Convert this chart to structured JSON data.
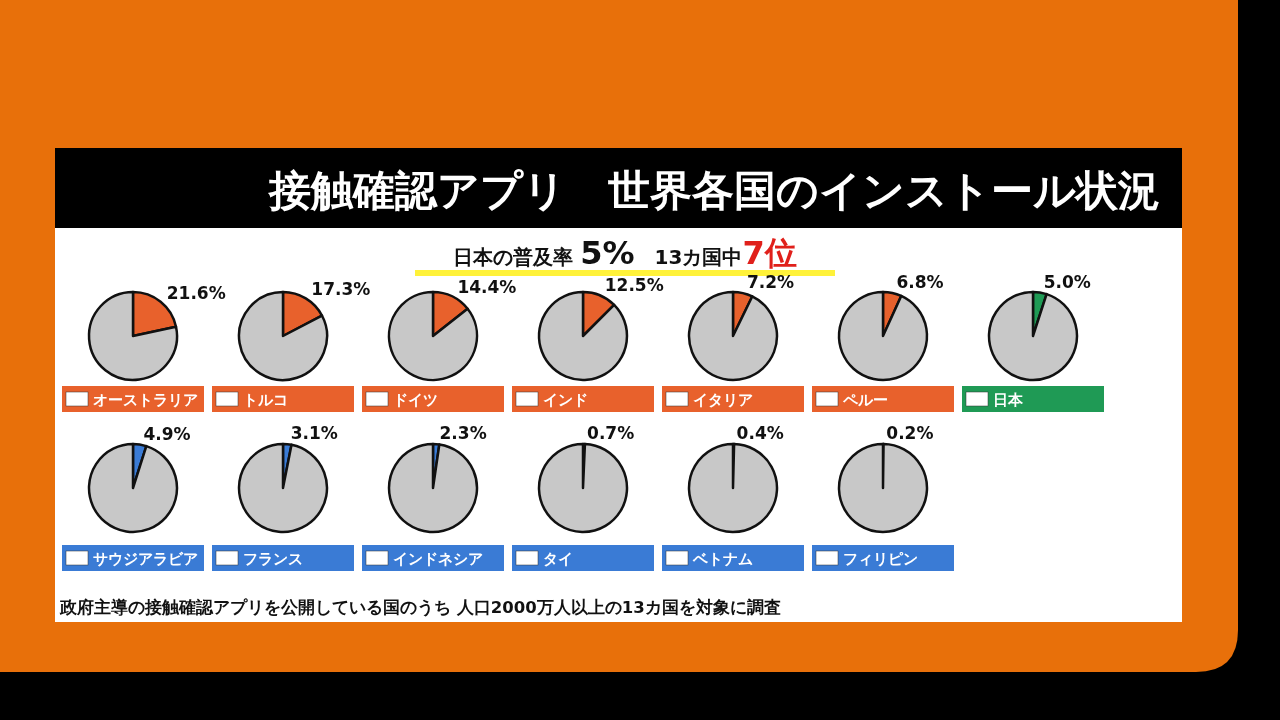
{
  "chart_data": [
    {
      "type": "other",
      "title": "接触確認アプリ　世界各国のインストール状況",
      "subtitle": "日本の普及率 **5%**　13カ国中**7位**",
      "annotations": [
        "政府主導の接触確認アプリを公開している国のうち 人口2000万人以上の13カ国を対象に調査"
      ]
    },
    {
      "type": "pie",
      "title": "オーストラリア",
      "categories": [
        null,
        null
      ],
      "values": [
        21.6,
        78.4
      ],
      "colors": [
        "#e8612c",
        "#c8c8c8"
      ],
      "value_labels": [
        "21.6%",
        null
      ]
    },
    {
      "type": "pie",
      "title": "トルコ",
      "categories": [
        null,
        null
      ],
      "values": [
        17.3,
        82.7
      ],
      "colors": [
        "#e8612c",
        "#c8c8c8"
      ],
      "value_labels": [
        "17.3%",
        null
      ]
    },
    {
      "type": "pie",
      "title": "ドイツ",
      "categories": [
        null,
        null
      ],
      "values": [
        14.4,
        85.6
      ],
      "colors": [
        "#e8612c",
        "#c8c8c8"
      ],
      "value_labels": [
        "14.4%",
        null
      ]
    },
    {
      "type": "pie",
      "title": "インド",
      "categories": [
        null,
        null
      ],
      "values": [
        12.5,
        87.5
      ],
      "colors": [
        "#e8612c",
        "#c8c8c8"
      ],
      "value_labels": [
        "12.5%",
        null
      ]
    },
    {
      "type": "pie",
      "title": "イタリア",
      "categories": [
        null,
        null
      ],
      "values": [
        7.2,
        92.8
      ],
      "colors": [
        "#e8612c",
        "#c8c8c8"
      ],
      "value_labels": [
        "7.2%",
        null
      ]
    },
    {
      "type": "pie",
      "title": "ペルー",
      "categories": [
        null,
        null
      ],
      "values": [
        6.8,
        93.2
      ],
      "colors": [
        "#e8612c",
        "#c8c8c8"
      ],
      "value_labels": [
        "6.8%",
        null
      ]
    },
    {
      "type": "pie",
      "title": "日本",
      "categories": [
        null,
        null
      ],
      "values": [
        5.0,
        95.0
      ],
      "colors": [
        "#1f9a55",
        "#c8c8c8"
      ],
      "value_labels": [
        "5.0%",
        null
      ]
    },
    {
      "type": "pie",
      "title": "サウジアラビア",
      "categories": [
        null,
        null
      ],
      "values": [
        4.9,
        95.1
      ],
      "colors": [
        "#3a7bd5",
        "#c8c8c8"
      ],
      "value_labels": [
        "4.9%",
        null
      ]
    },
    {
      "type": "pie",
      "title": "フランス",
      "categories": [
        null,
        null
      ],
      "values": [
        3.1,
        96.9
      ],
      "colors": [
        "#3a7bd5",
        "#c8c8c8"
      ],
      "value_labels": [
        "3.1%",
        null
      ]
    },
    {
      "type": "pie",
      "title": "インドネシア",
      "categories": [
        null,
        null
      ],
      "values": [
        2.3,
        97.7
      ],
      "colors": [
        "#3a7bd5",
        "#c8c8c8"
      ],
      "value_labels": [
        "2.3%",
        null
      ]
    },
    {
      "type": "pie",
      "title": "タイ",
      "categories": [
        null,
        null
      ],
      "values": [
        0.7,
        99.3
      ],
      "colors": [
        "#3a7bd5",
        "#c8c8c8"
      ],
      "value_labels": [
        "0.7%",
        null
      ]
    },
    {
      "type": "pie",
      "title": "ベトナム",
      "categories": [
        null,
        null
      ],
      "values": [
        0.4,
        99.6
      ],
      "colors": [
        "#3a7bd5",
        "#c8c8c8"
      ],
      "value_labels": [
        "0.4%",
        null
      ]
    },
    {
      "type": "pie",
      "title": "フィリピン",
      "categories": [
        null,
        null
      ],
      "values": [
        0.2,
        99.8
      ],
      "colors": [
        "#3a7bd5",
        "#c8c8c8"
      ],
      "value_labels": [
        "0.2%",
        null
      ]
    }
  ]
}
